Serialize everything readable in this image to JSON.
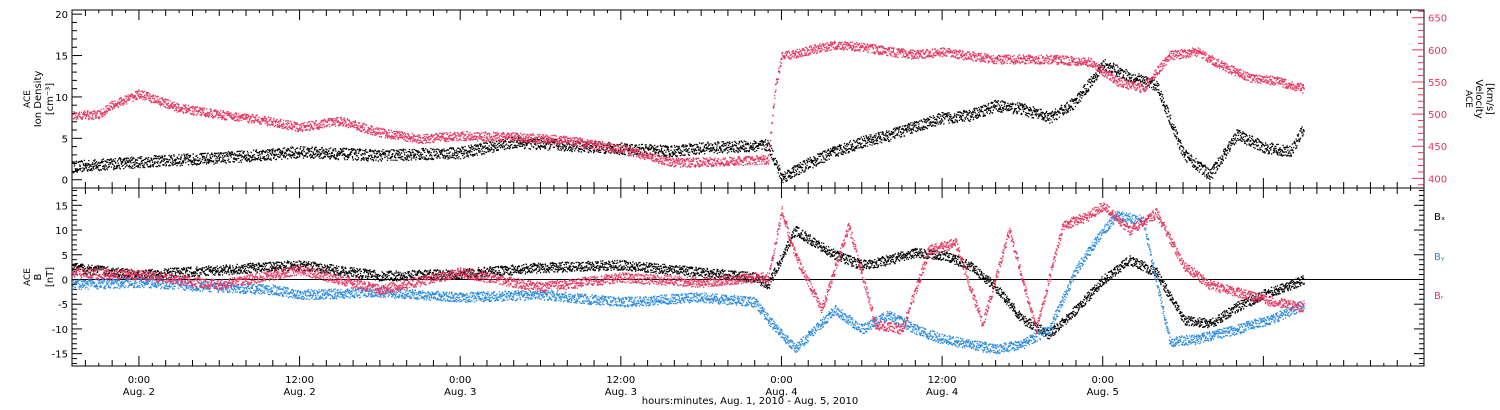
{
  "chart_data": [
    {
      "type": "scatter",
      "panel": "top",
      "ylabel_left": [
        "ACE",
        "Ion Density",
        "[cm⁻³]"
      ],
      "ylabel_right": [
        "ACE",
        "Velocity",
        "[km/s]"
      ],
      "ylim_left": [
        -1,
        20.5
      ],
      "ylim_right": [
        385,
        662
      ],
      "yticks_left": [
        "0",
        "5",
        "10",
        "15",
        "20"
      ],
      "yticks_right": [
        "400",
        "450",
        "500",
        "550",
        "600",
        "650"
      ],
      "x_units": "hours since Aug. 1, 2010 00:00",
      "series": [
        {
          "name": "",
          "axis": "left",
          "color": "#000000",
          "x": [
            19,
            22,
            24,
            30,
            36,
            42,
            48,
            52,
            56,
            60,
            64,
            66,
            68,
            71,
            72,
            74,
            76,
            78,
            80,
            82,
            84,
            86,
            88,
            90,
            92,
            94,
            96,
            98,
            100,
            102,
            104,
            106,
            108,
            110,
            111
          ],
          "y": [
            1.6,
            2.0,
            2.2,
            2.7,
            3.4,
            3.0,
            3.3,
            4.6,
            4.2,
            3.8,
            3.5,
            3.9,
            4.0,
            4.2,
            0.3,
            2.0,
            3.5,
            4.6,
            5.4,
            6.5,
            7.5,
            7.8,
            9.0,
            8.6,
            7.5,
            9.5,
            14.0,
            12.5,
            11.5,
            3.2,
            0.6,
            5.5,
            4.0,
            3.4,
            6.3
          ]
        },
        {
          "name": "",
          "axis": "right",
          "color": "#e8345e",
          "x": [
            19,
            21,
            22,
            24,
            27,
            30,
            33,
            36,
            39,
            42,
            45,
            48,
            52,
            56,
            60,
            64,
            68,
            71,
            71.5,
            72,
            74,
            76,
            78,
            80,
            82,
            84,
            88,
            92,
            95,
            97,
            99,
            101,
            103,
            105,
            107,
            109,
            111
          ],
          "y": [
            498,
            500,
            515,
            532,
            510,
            500,
            492,
            480,
            490,
            472,
            462,
            467,
            465,
            460,
            446,
            425,
            427,
            430,
            540,
            590,
            600,
            608,
            605,
            598,
            593,
            597,
            586,
            586,
            582,
            552,
            540,
            592,
            598,
            575,
            557,
            552,
            540
          ]
        }
      ]
    },
    {
      "type": "scatter",
      "panel": "bottom",
      "ylabel_left": [
        "ACE",
        "B",
        "[nT]"
      ],
      "ylim": [
        -17.5,
        18.5
      ],
      "yticks": [
        "-15",
        "-10",
        "-5",
        "0",
        "5",
        "10",
        "15"
      ],
      "x_units": "hours since Aug. 1, 2010 00:00",
      "series": [
        {
          "name": "Bₓ",
          "color": "#000000",
          "x": [
            19,
            24,
            30,
            36,
            42,
            48,
            54,
            60,
            66,
            70,
            71,
            73,
            76,
            78,
            80,
            82,
            84,
            86,
            88,
            90,
            92,
            94,
            96,
            98,
            100,
            102,
            104,
            106,
            108,
            110,
            111
          ],
          "y": [
            2.5,
            1.0,
            2.0,
            3.0,
            0.8,
            1.2,
            2.5,
            3.0,
            1.5,
            0.5,
            -1.0,
            10.0,
            5.0,
            3.0,
            4.0,
            5.5,
            5.0,
            3.0,
            -1.5,
            -8.0,
            -11.0,
            -6.0,
            0.0,
            4.0,
            1.5,
            -8.0,
            -9.0,
            -5.5,
            -3.0,
            -1.0,
            0.0
          ]
        },
        {
          "name": "Bᵧ",
          "color": "#2a8ae0",
          "x": [
            19,
            24,
            30,
            34,
            36,
            42,
            48,
            54,
            60,
            66,
            70,
            71,
            73,
            76,
            78,
            80,
            82,
            84,
            86,
            88,
            90,
            92,
            94,
            96,
            97,
            99,
            101,
            103,
            106,
            109,
            111
          ],
          "y": [
            -1.0,
            -0.5,
            -1.5,
            -2.0,
            -3.0,
            -2.5,
            -3.5,
            -3.0,
            -4.5,
            -3.5,
            -4.5,
            -8.0,
            -14.0,
            -6.0,
            -10.0,
            -7.0,
            -10.0,
            -12.0,
            -13.0,
            -14.0,
            -13.0,
            -10.0,
            2.0,
            10.0,
            13.0,
            12.0,
            -12.5,
            -12.0,
            -10.0,
            -7.5,
            -5.0
          ]
        },
        {
          "name": "Bᵣ",
          "color": "#e8345e",
          "x": [
            19,
            24,
            30,
            36,
            42,
            48,
            54,
            60,
            66,
            70,
            71,
            72,
            73,
            75,
            77,
            79,
            81,
            83,
            85,
            87,
            89,
            91,
            93,
            95,
            96,
            98,
            100,
            102,
            104,
            106,
            108,
            110,
            111
          ],
          "y": [
            1.5,
            1.0,
            -1.0,
            2.0,
            -2.0,
            1.5,
            -1.5,
            0.5,
            -0.5,
            0.5,
            0.5,
            14.0,
            5.0,
            -6.0,
            11.0,
            -9.0,
            -10.0,
            6.0,
            7.5,
            -9.0,
            10.0,
            -10.0,
            11.0,
            13.0,
            15.0,
            10.0,
            13.5,
            3.0,
            -1.0,
            -2.5,
            -4.0,
            -5.0,
            -5.5
          ]
        }
      ]
    }
  ],
  "x_axis": {
    "range_hours": [
      19,
      120
    ],
    "ticks": [
      {
        "x": 24,
        "time": "0:00",
        "date": "Aug. 2"
      },
      {
        "x": 36,
        "time": "12:00",
        "date": "Aug. 2"
      },
      {
        "x": 48,
        "time": "0:00",
        "date": "Aug. 3"
      },
      {
        "x": 60,
        "time": "12:00",
        "date": "Aug. 3"
      },
      {
        "x": 72,
        "time": "0:00",
        "date": "Aug. 4"
      },
      {
        "x": 84,
        "time": "12:00",
        "date": "Aug. 4"
      },
      {
        "x": 96,
        "time": "0:00",
        "date": "Aug. 5"
      }
    ],
    "title": "hours:minutes, Aug.  1, 2010 - Aug.  5, 2010"
  }
}
